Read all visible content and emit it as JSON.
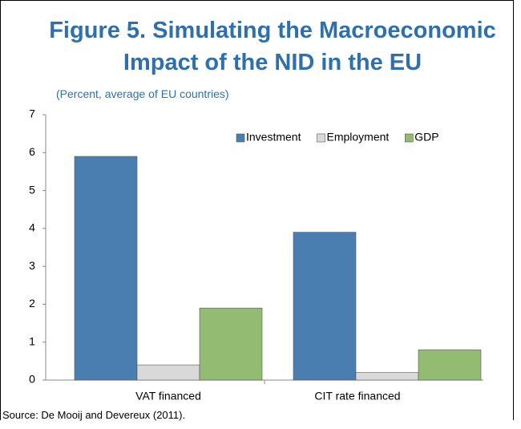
{
  "chart_data": {
    "type": "bar",
    "title": "Figure 5. Simulating the Macroeconomic Impact of the NID in the EU",
    "subtitle": "(Percent, average of EU countries)",
    "source": "Source: De Mooij and Devereux (2011).",
    "categories": [
      "VAT financed",
      "CIT rate financed"
    ],
    "series": [
      {
        "name": "Investment",
        "color": "#4a7eb1",
        "values": [
          5.9,
          3.9
        ]
      },
      {
        "name": "Employment",
        "color": "#d9d9d9",
        "values": [
          0.4,
          0.2
        ]
      },
      {
        "name": "GDP",
        "color": "#93bc72",
        "values": [
          1.9,
          0.8
        ]
      }
    ],
    "ylim": [
      0,
      7
    ],
    "yticks": [
      0,
      1,
      2,
      3,
      4,
      5,
      6,
      7
    ],
    "grid": false,
    "legend": "upper right"
  }
}
